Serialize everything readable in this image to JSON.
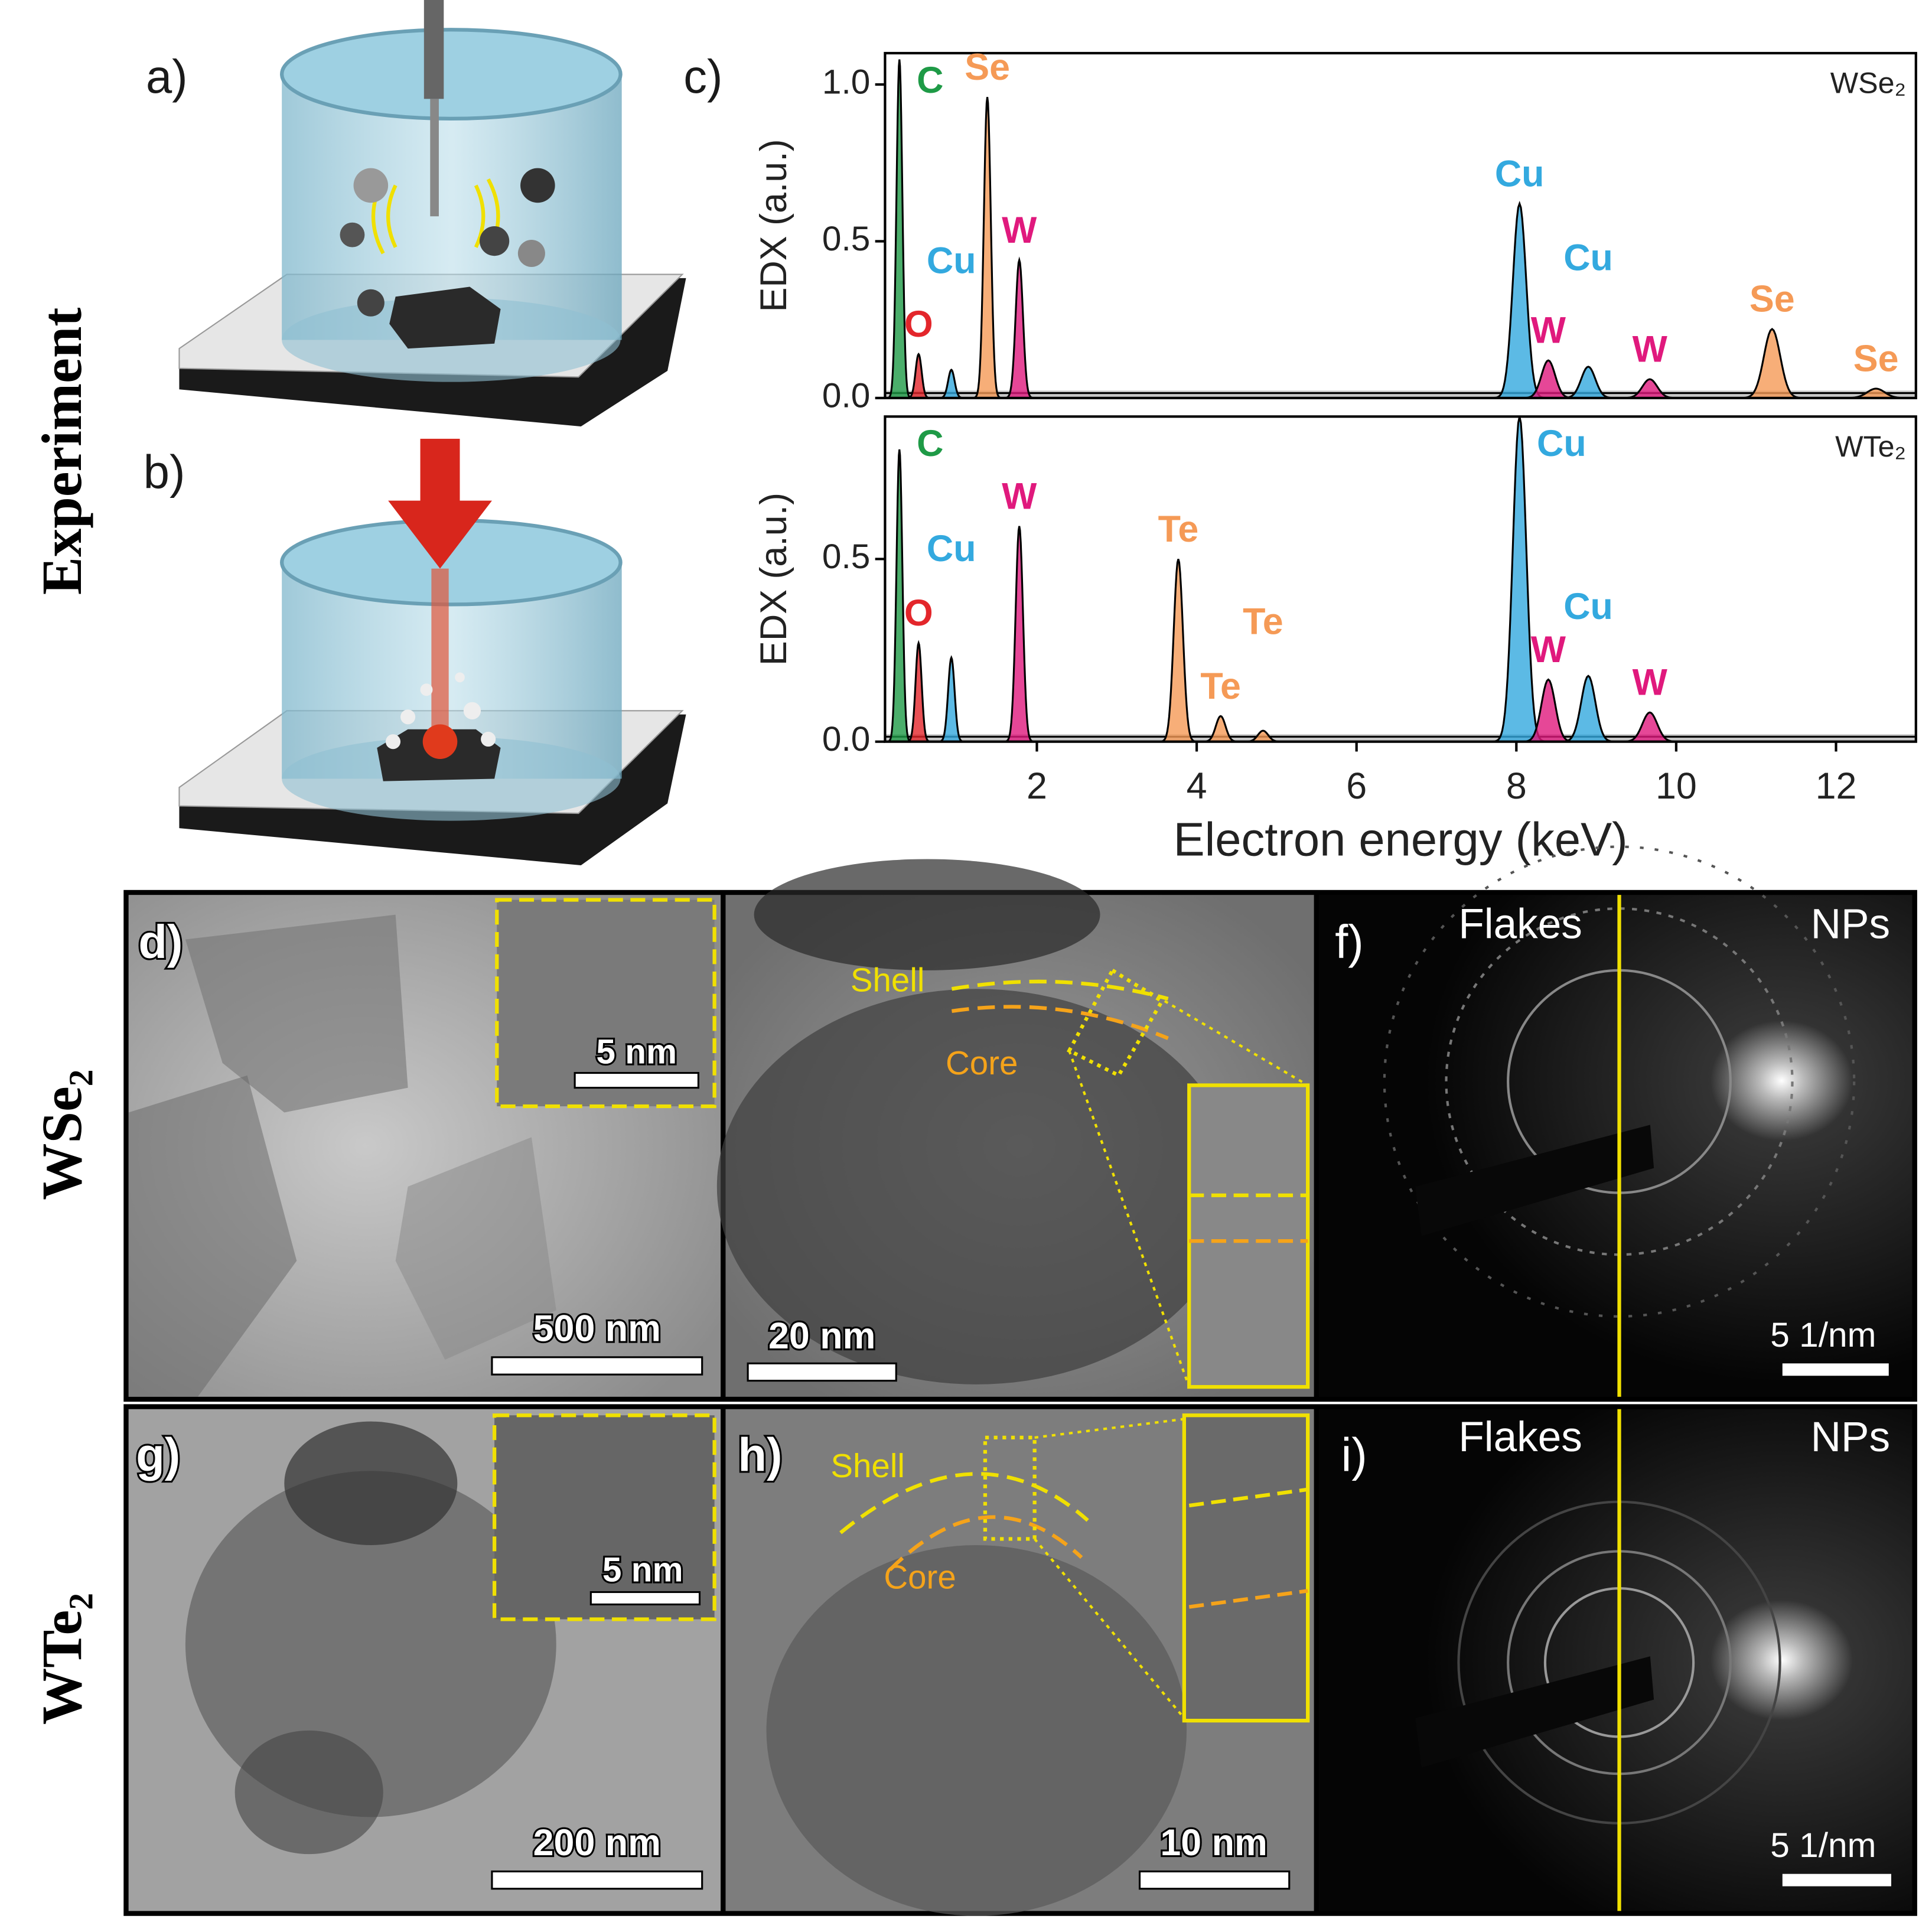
{
  "row_labels": [
    "Experiment",
    "WSe₂",
    "WTe₂"
  ],
  "panels": {
    "a": {
      "label": "a)"
    },
    "b": {
      "label": "b)"
    },
    "c": {
      "label": "c)"
    },
    "d": {
      "label": "d)",
      "inset_scale": "5 nm",
      "scale": "500 nm"
    },
    "e": {
      "shell": "Shell",
      "core": "Core",
      "scale": "20 nm"
    },
    "f": {
      "label": "f)",
      "left": "Flakes",
      "right": "NPs",
      "scale": "5 1/nm"
    },
    "g": {
      "label": "g)",
      "inset_scale": "5 nm",
      "scale": "200 nm"
    },
    "h": {
      "label": "h)",
      "shell": "Shell",
      "core": "Core",
      "scale": "10 nm"
    },
    "i": {
      "label": "i)",
      "left": "Flakes",
      "right": "NPs",
      "scale": "5 1/nm"
    }
  },
  "chart_data": [
    {
      "type": "area",
      "label": "WSe₂",
      "y_label": "EDX (a.u.)",
      "xlim": [
        0.1,
        13
      ],
      "ylim": [
        0,
        1.1
      ],
      "yticks": [
        {
          "value": 0,
          "label": "0.0"
        },
        {
          "value": 0.5,
          "label": "0.5"
        },
        {
          "value": 1,
          "label": "1.0"
        }
      ],
      "x": [
        0.28,
        0.52,
        0.93,
        1.38,
        1.78,
        8.04,
        8.4,
        8.9,
        9.67,
        11.2,
        12.5
      ],
      "values": [
        1.08,
        0.14,
        0.09,
        0.96,
        0.44,
        0.62,
        0.12,
        0.1,
        0.06,
        0.22,
        0.03
      ],
      "labels": [
        "C",
        "O",
        "Cu",
        "Se",
        "W",
        "Cu",
        "W",
        "Cu",
        "W",
        "Se",
        "Se"
      ],
      "colors": [
        "#1e9a46",
        "#e3262b",
        "#33a9df",
        "#f59a56",
        "#e0197d",
        "#33a9df",
        "#e0197d",
        "#33a9df",
        "#e0197d",
        "#f59a56",
        "#f59a56"
      ]
    },
    {
      "type": "area",
      "label": "WTe₂",
      "y_label": "EDX (a.u.)",
      "x_label": "Electron energy (keV)",
      "xlim": [
        0.1,
        13
      ],
      "ylim": [
        0,
        0.89
      ],
      "xticks": [
        2,
        4,
        6,
        8,
        10,
        12
      ],
      "yticks": [
        {
          "value": 0,
          "label": "0.0"
        },
        {
          "value": 0.5,
          "label": "0.5"
        }
      ],
      "x": [
        0.28,
        0.52,
        0.93,
        1.78,
        3.77,
        4.3,
        4.83,
        8.04,
        8.4,
        8.9,
        9.67
      ],
      "values": [
        0.8,
        0.27,
        0.23,
        0.59,
        0.5,
        0.07,
        0.03,
        0.89,
        0.17,
        0.18,
        0.08
      ],
      "labels": [
        "C",
        "O",
        "Cu",
        "W",
        "Te",
        "Te",
        "Te",
        "Cu",
        "W",
        "Cu",
        "W"
      ],
      "colors": [
        "#1e9a46",
        "#e3262b",
        "#33a9df",
        "#e0197d",
        "#f59a56",
        "#f59a56",
        "#f59a56",
        "#33a9df",
        "#e0197d",
        "#33a9df",
        "#e0197d"
      ]
    }
  ]
}
